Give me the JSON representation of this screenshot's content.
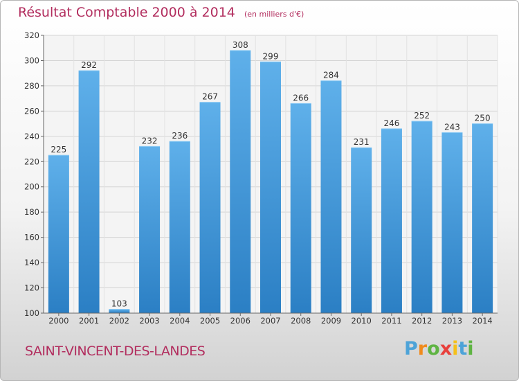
{
  "chart_data": {
    "type": "bar",
    "title": "Résultat Comptable 2000 à 2014",
    "subtitle": "(en milliers d'€)",
    "categories": [
      "2000",
      "2001",
      "2002",
      "2003",
      "2004",
      "2005",
      "2006",
      "2007",
      "2008",
      "2009",
      "2010",
      "2011",
      "2012",
      "2013",
      "2014"
    ],
    "values": [
      225,
      292,
      103,
      232,
      236,
      267,
      308,
      299,
      266,
      284,
      231,
      246,
      252,
      243,
      250
    ],
    "ylim": [
      100,
      320
    ],
    "yticks": [
      100,
      120,
      140,
      160,
      180,
      200,
      220,
      240,
      260,
      280,
      300,
      320
    ],
    "grid": true,
    "bar_color": "#3a8fd4",
    "xlabel": "",
    "ylabel": ""
  },
  "footer": {
    "commune": "SAINT-VINCENT-DES-LANDES"
  },
  "logo": {
    "parts": [
      "P",
      "r",
      "o",
      "x",
      "i",
      "t",
      "i"
    ]
  }
}
